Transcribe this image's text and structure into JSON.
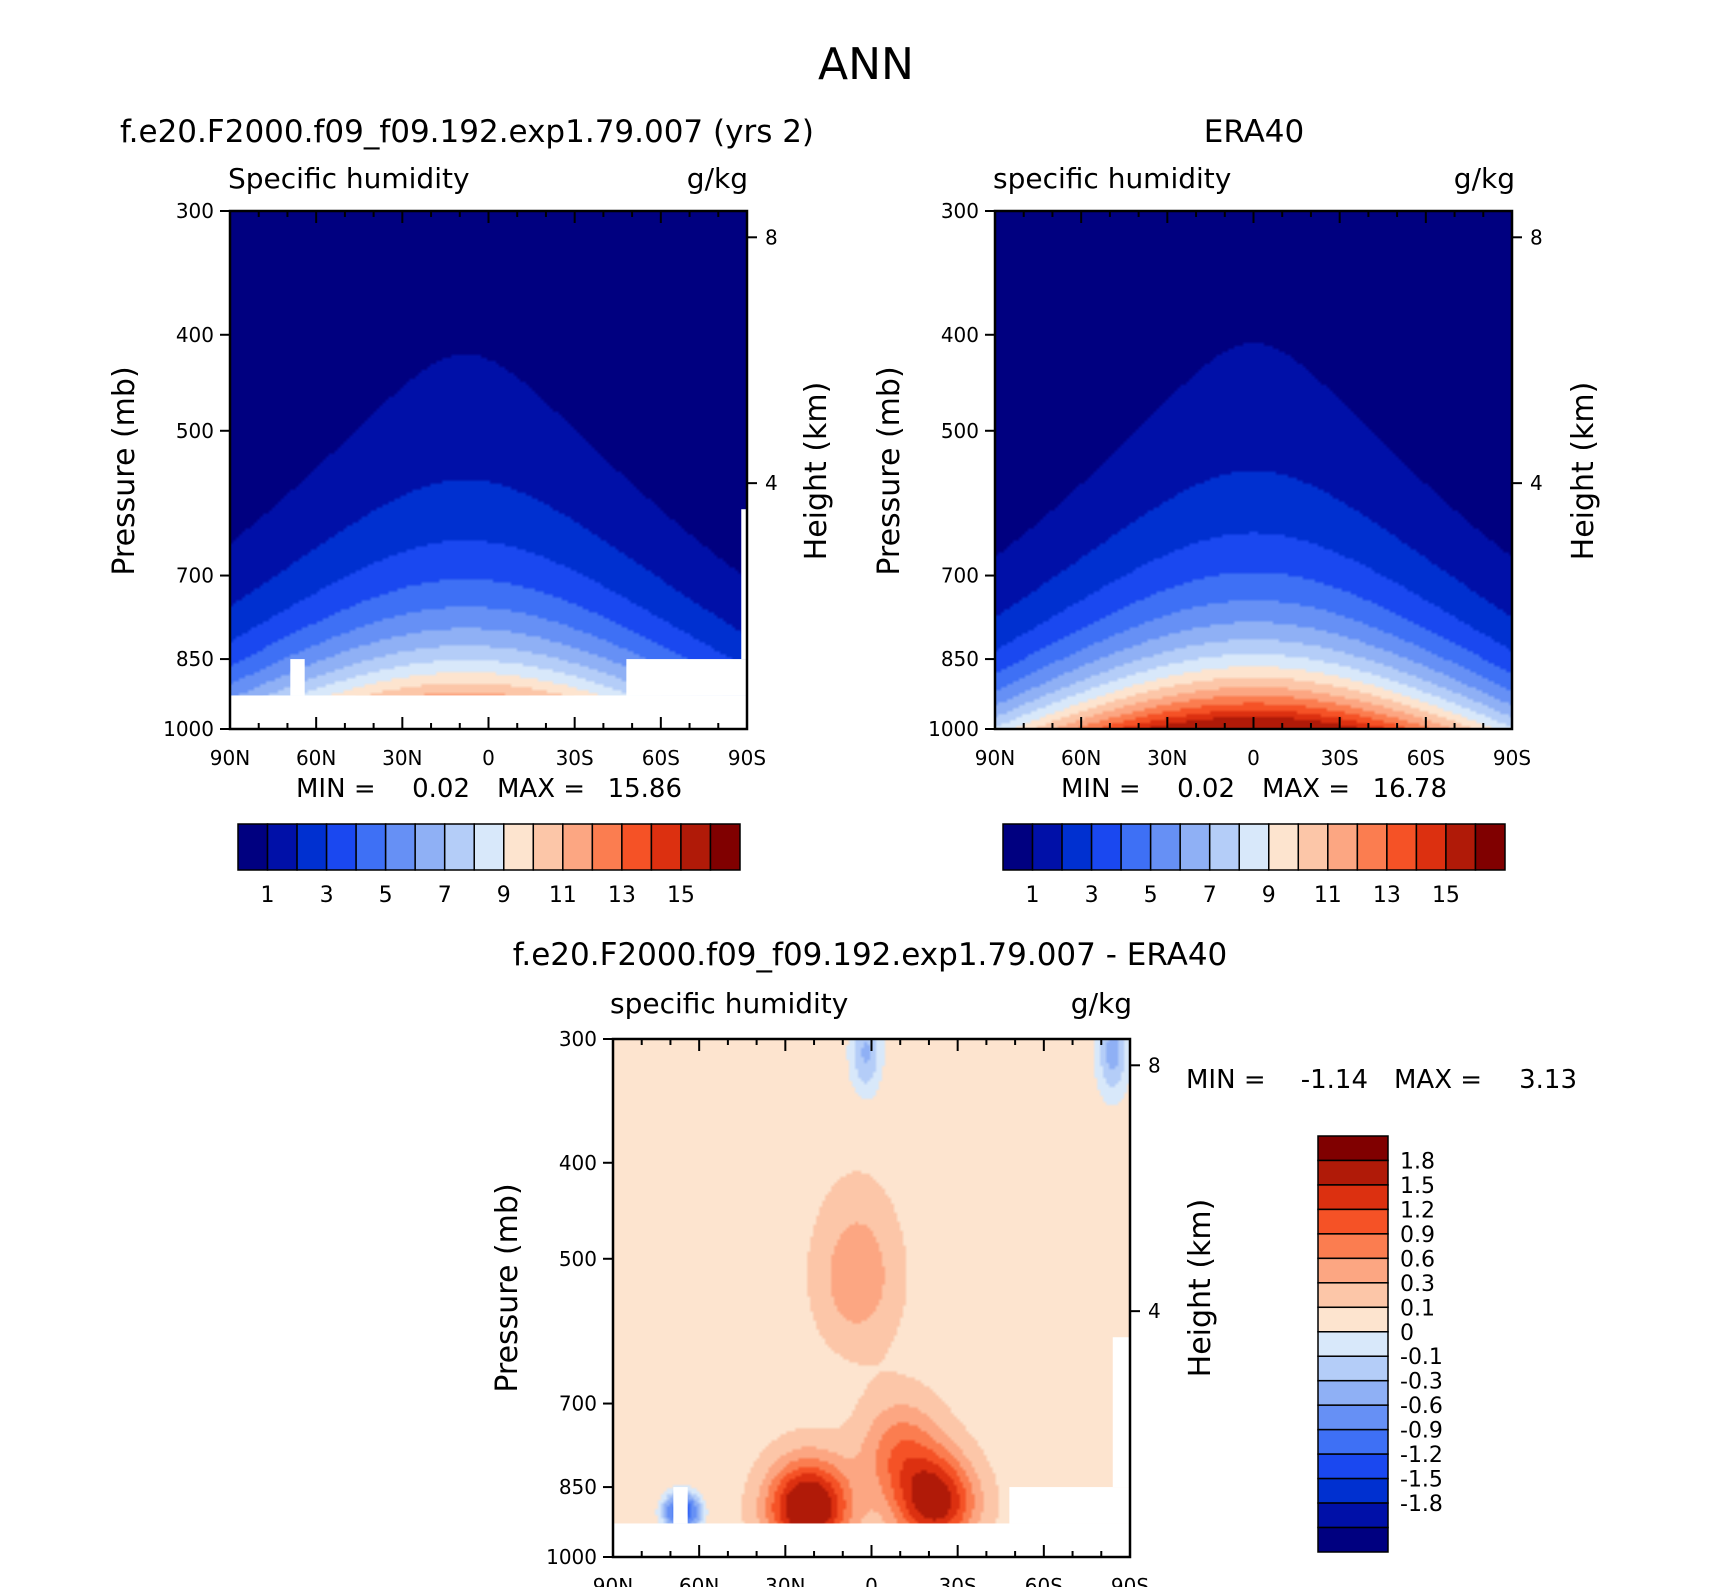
{
  "figure": {
    "title": "ANN"
  },
  "chart_data": [
    {
      "id": "model",
      "type": "heatmap",
      "panel_title": "f.e20.F2000.f09_f09.192.exp1.79.007 (yrs 2)",
      "variable": "Specific humidity",
      "units": "g/kg",
      "ylabel": "Pressure (mb)",
      "ylabel2": "Height (km)",
      "yticks": [
        "300",
        "400",
        "500",
        "700",
        "850",
        "1000"
      ],
      "ytick_values": [
        300,
        400,
        500,
        700,
        850,
        1000
      ],
      "ylim": [
        300,
        1000
      ],
      "height_ticks": [
        {
          "value": 8,
          "label": "8"
        },
        {
          "value": 4,
          "label": "4"
        }
      ],
      "xticks": [
        "90N",
        "60N",
        "30N",
        "0",
        "30S",
        "60S",
        "90S"
      ],
      "xtick_values": [
        90,
        60,
        30,
        0,
        -30,
        -60,
        -90
      ],
      "xlim": [
        90,
        -90
      ],
      "stats": {
        "min_label": "MIN =",
        "min": "0.02",
        "max_label": "MAX =",
        "max": "15.86"
      },
      "colorbar": {
        "levels": [
          1,
          2,
          3,
          4,
          5,
          6,
          7,
          8,
          9,
          10,
          11,
          12,
          13,
          14,
          15
        ],
        "tick_labels": [
          "1",
          "3",
          "5",
          "7",
          "9",
          "11",
          "13",
          "15"
        ]
      },
      "peak": {
        "lat": 8,
        "p_base": 925,
        "peak_value": 15.86
      },
      "masked_lower": [
        {
          "lat_from": 90,
          "lat_to": -90,
          "p_from": 925,
          "p_to": 1000
        },
        {
          "lat_from": -48,
          "lat_to": -90,
          "p_from": 850,
          "p_to": 925
        },
        {
          "lat_from": 69,
          "lat_to": 64,
          "p_from": 850,
          "p_to": 925
        },
        {
          "lat_from": -88,
          "lat_to": -90,
          "p_from": 600,
          "p_to": 850
        }
      ]
    },
    {
      "id": "obs",
      "type": "heatmap",
      "panel_title": "ERA40",
      "variable": "specific humidity",
      "units": "g/kg",
      "ylabel": "Pressure (mb)",
      "ylabel2": "Height (km)",
      "yticks": [
        "300",
        "400",
        "500",
        "700",
        "850",
        "1000"
      ],
      "ytick_values": [
        300,
        400,
        500,
        700,
        850,
        1000
      ],
      "ylim": [
        300,
        1000
      ],
      "height_ticks": [
        {
          "value": 8,
          "label": "8"
        },
        {
          "value": 4,
          "label": "4"
        }
      ],
      "xticks": [
        "90N",
        "60N",
        "30N",
        "0",
        "30S",
        "60S",
        "90S"
      ],
      "xtick_values": [
        90,
        60,
        30,
        0,
        -30,
        -60,
        -90
      ],
      "xlim": [
        90,
        -90
      ],
      "stats": {
        "min_label": "MIN =",
        "min": "0.02",
        "max_label": "MAX =",
        "max": "16.78"
      },
      "colorbar": {
        "levels": [
          1,
          2,
          3,
          4,
          5,
          6,
          7,
          8,
          9,
          10,
          11,
          12,
          13,
          14,
          15
        ],
        "tick_labels": [
          "1",
          "3",
          "5",
          "7",
          "9",
          "11",
          "13",
          "15"
        ]
      },
      "peak": {
        "lat": 0,
        "p_base": 1000,
        "peak_value": 16.78
      },
      "masked_lower": []
    },
    {
      "id": "diff",
      "type": "heatmap",
      "panel_title": "f.e20.F2000.f09_f09.192.exp1.79.007 - ERA40",
      "variable": "specific humidity",
      "units": "g/kg",
      "ylabel": "Pressure (mb)",
      "ylabel2": "Height (km)",
      "yticks": [
        "300",
        "400",
        "500",
        "700",
        "850",
        "1000"
      ],
      "ytick_values": [
        300,
        400,
        500,
        700,
        850,
        1000
      ],
      "ylim": [
        300,
        1000
      ],
      "height_ticks": [
        {
          "value": 8,
          "label": "8"
        },
        {
          "value": 4,
          "label": "4"
        }
      ],
      "xticks": [
        "90N",
        "60N",
        "30N",
        "0",
        "30S",
        "60S",
        "90S"
      ],
      "xtick_values": [
        90,
        60,
        30,
        0,
        -30,
        -60,
        -90
      ],
      "xlim": [
        90,
        -90
      ],
      "stats": {
        "min_label": "MIN =",
        "min": "-1.14",
        "max_label": "MAX =",
        "max": "3.13"
      },
      "colorbar": {
        "levels": [
          -1.8,
          -1.5,
          -1.2,
          -0.9,
          -0.6,
          -0.3,
          -0.1,
          0,
          0.1,
          0.3,
          0.6,
          0.9,
          1.2,
          1.5,
          1.8
        ],
        "tick_labels": [
          "1.8",
          "1.5",
          "1.2",
          "0.9",
          "0.6",
          "0.3",
          "0.1",
          "0",
          "-0.1",
          "-0.3",
          "-0.6",
          "-0.9",
          "-1.2",
          "-1.5",
          "-1.8"
        ]
      },
      "blobs": [
        {
          "lat": 22,
          "p": 890,
          "value": 2.3
        },
        {
          "lat": -22,
          "p": 880,
          "value": 1.9
        },
        {
          "lat": 5,
          "p": 520,
          "value": 0.7
        },
        {
          "lat": -10,
          "p": 780,
          "value": 0.9
        }
      ],
      "cool_spots": [
        {
          "lat": 66,
          "p": 900,
          "value": -1.1
        },
        {
          "lat": -84,
          "p": 310,
          "value": -0.15
        },
        {
          "lat": 2,
          "p": 310,
          "value": -0.12
        }
      ],
      "masked_lower": [
        {
          "lat_from": 90,
          "lat_to": -90,
          "p_from": 925,
          "p_to": 1000
        },
        {
          "lat_from": -48,
          "lat_to": -90,
          "p_from": 850,
          "p_to": 925
        },
        {
          "lat_from": 69,
          "lat_to": 64,
          "p_from": 850,
          "p_to": 925
        },
        {
          "lat_from": -84,
          "lat_to": -90,
          "p_from": 600,
          "p_to": 850
        }
      ]
    }
  ],
  "colors": {
    "sequential": [
      "#000080",
      "#0010a8",
      "#0030d0",
      "#1a48f0",
      "#3e70f5",
      "#6690f5",
      "#8fb0f5",
      "#b4cdf8",
      "#d8e8fa",
      "#fde4cf",
      "#fcc6a8",
      "#fca682",
      "#fb7d50",
      "#f55226",
      "#dc3010",
      "#b01a08",
      "#800000"
    ],
    "diverging": [
      "#000080",
      "#0010a8",
      "#0030d0",
      "#1a48f0",
      "#3e70f5",
      "#6690f5",
      "#8fb0f5",
      "#b4cdf8",
      "#d8e8fa",
      "#fde4cf",
      "#fcc6a8",
      "#fca682",
      "#fb7d50",
      "#f55226",
      "#dc3010",
      "#b01a08",
      "#800000"
    ]
  }
}
